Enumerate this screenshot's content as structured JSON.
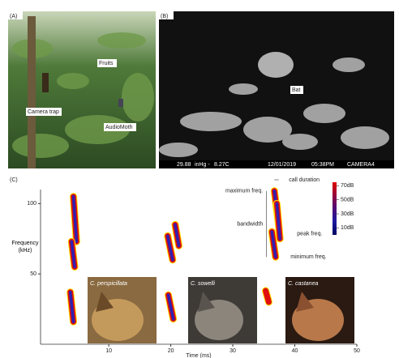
{
  "panel_a": {
    "label": "(A)",
    "annotations": [
      "Fruits",
      "Camera trap",
      "AudioMoth"
    ]
  },
  "panel_b": {
    "label": "(B)",
    "annotation": "Bat",
    "footer": [
      "29.88",
      "inHg -",
      "8.27C",
      "12/01/2019",
      "05:38PM",
      "CAMERA4"
    ]
  },
  "chart_data": {
    "type": "spectrogram",
    "panel_label": "(C)",
    "xlabel": "Time (ms)",
    "ylabel": "Frequency (kHz)",
    "xlim": [
      -1,
      50
    ],
    "xticks": [
      10,
      20,
      30,
      40,
      50
    ],
    "ylim": [
      0,
      110
    ],
    "yticks": [
      50,
      100
    ],
    "calls": [
      {
        "time": [
          4.3,
          4.8
        ],
        "freq": [
          105,
          73
        ]
      },
      {
        "time": [
          4.0,
          4.5
        ],
        "freq": [
          73,
          55
        ]
      },
      {
        "time": [
          3.8,
          4.3
        ],
        "freq": [
          37,
          16
        ]
      },
      {
        "time": [
          19.5,
          20.3
        ],
        "freq": [
          77,
          60
        ]
      },
      {
        "time": [
          20.7,
          21.3
        ],
        "freq": [
          85,
          70
        ]
      },
      {
        "time": [
          19.6,
          20.4
        ],
        "freq": [
          35,
          18
        ]
      },
      {
        "time": [
          36.7,
          37.4
        ],
        "freq": [
          109,
          85
        ]
      },
      {
        "time": [
          37.1,
          37.6
        ],
        "freq": [
          100,
          75
        ]
      },
      {
        "time": [
          36.3,
          36.9
        ],
        "freq": [
          80,
          62
        ]
      },
      {
        "time": [
          35.3,
          35.8
        ],
        "freq": [
          38,
          30
        ]
      }
    ],
    "annotations": [
      "call duration",
      "maximum freq.",
      "bandwidth",
      "peak freq.",
      "minimum freq."
    ],
    "colorbar": {
      "clim": [
        0,
        75
      ],
      "ticks": [
        {
          "value": 70,
          "label": "70dB"
        },
        {
          "value": 50,
          "label": "50dB"
        },
        {
          "value": 30,
          "label": "30dB"
        },
        {
          "value": 10,
          "label": "10dB"
        }
      ]
    },
    "species": [
      "C. perspicillata",
      "C. sowelli",
      "C. castanea"
    ]
  }
}
